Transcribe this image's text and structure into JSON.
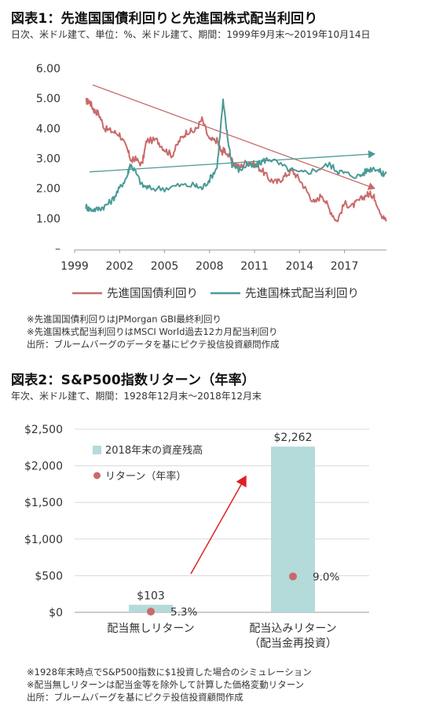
{
  "chart1": {
    "title": "図表1：先進国国債利回りと先進国株式配当利回り",
    "subtitle": "日次、米ドル建て、単位：%、米ドル建て、期間：1999年9月末〜2019年10月14日",
    "notes": [
      "※先進国国債利回りはJPMorgan GBI最終利回り",
      "※先進国株式配当利回りはMSCI World過去12カ月配当利回り",
      "出所：ブルームバーグのデータを基にピクテ投信投資顧問作成"
    ]
  },
  "chart2": {
    "title": "図表2：S&P500指数リターン（年率）",
    "subtitle": "年次、米ドル建て、期間：1928年12月末〜2018年12月末",
    "notes": [
      "※1928年末時点でS&P500指数に$1投資した場合のシミュレーション",
      "※配当無しリターンは配当金等を除外して計算した価格変動リターン",
      "出所：ブルームバーグを基にピクテ投信投資顧問作成"
    ]
  },
  "chart_data": [
    {
      "type": "line",
      "title": "図表1：先進国国債利回りと先進国株式配当利回り",
      "ylim": [
        0,
        6
      ],
      "y_ticks": [
        "–",
        "1.00",
        "2.00",
        "3.00",
        "4.00",
        "5.00",
        "6.00"
      ],
      "x_ticks": [
        "1999",
        "2002",
        "2005",
        "2008",
        "2011",
        "2014",
        "2017"
      ],
      "xlim": [
        1999.0,
        2019.8
      ],
      "grid": false,
      "legend_position": "bottom",
      "colors": {
        "bond": "#c96a6a",
        "div": "#4a9a96"
      },
      "series": [
        {
          "name": "先進国国債利回り",
          "color": "#c96a6a",
          "x": [
            1999.75,
            2000.0,
            2000.3,
            2000.6,
            2001.0,
            2001.5,
            2002.0,
            2002.5,
            2002.8,
            2003.0,
            2003.5,
            2003.8,
            2004.5,
            2005.0,
            2005.5,
            2006.0,
            2006.5,
            2007.0,
            2007.5,
            2008.0,
            2008.5,
            2008.8,
            2009.0,
            2009.5,
            2010.0,
            2010.5,
            2011.0,
            2011.5,
            2012.0,
            2012.5,
            2013.0,
            2013.5,
            2014.0,
            2014.5,
            2015.0,
            2015.5,
            2016.0,
            2016.5,
            2017.0,
            2017.5,
            2018.0,
            2018.5,
            2018.8,
            2019.0,
            2019.5,
            2019.79
          ],
          "y": [
            4.9,
            4.9,
            4.6,
            4.5,
            4.0,
            3.9,
            3.8,
            3.3,
            2.9,
            3.0,
            2.8,
            3.6,
            3.6,
            3.3,
            3.1,
            3.6,
            3.9,
            3.9,
            4.3,
            3.6,
            3.6,
            3.2,
            3.3,
            2.9,
            2.7,
            2.9,
            2.8,
            2.6,
            2.3,
            2.2,
            2.4,
            2.6,
            2.3,
            1.9,
            1.5,
            1.8,
            1.3,
            0.9,
            1.5,
            1.4,
            1.6,
            1.8,
            1.8,
            1.7,
            1.1,
            0.9
          ]
        },
        {
          "name": "先進国株式配当利回り",
          "color": "#4a9a96",
          "x": [
            1999.75,
            2000.0,
            2000.5,
            2001.0,
            2001.5,
            2002.0,
            2002.5,
            2002.7,
            2003.0,
            2003.5,
            2004.0,
            2005.0,
            2006.0,
            2007.0,
            2007.5,
            2008.0,
            2008.5,
            2008.9,
            2009.2,
            2009.5,
            2010.0,
            2010.5,
            2011.0,
            2011.5,
            2012.0,
            2013.0,
            2014.0,
            2015.0,
            2016.0,
            2016.5,
            2017.0,
            2018.0,
            2018.5,
            2019.0,
            2019.5,
            2019.79
          ],
          "y": [
            1.4,
            1.3,
            1.3,
            1.4,
            1.6,
            2.0,
            2.4,
            2.8,
            2.6,
            2.1,
            2.0,
            2.0,
            2.1,
            2.1,
            2.0,
            2.3,
            2.7,
            4.9,
            3.7,
            2.8,
            2.6,
            2.8,
            2.7,
            2.9,
            3.0,
            2.7,
            2.5,
            2.6,
            2.8,
            2.6,
            2.5,
            2.4,
            2.6,
            2.7,
            2.5,
            2.5
          ]
        }
      ],
      "trendlines": [
        {
          "series": "先進国国債利回り",
          "x": [
            2000.2,
            2019.0
          ],
          "y": [
            5.45,
            2.0
          ]
        },
        {
          "series": "先進国株式配当利回り",
          "x": [
            2000.0,
            2019.0
          ],
          "y": [
            2.55,
            3.15
          ]
        }
      ]
    },
    {
      "type": "bar",
      "title": "図表2：S&P500指数リターン（年率）",
      "categories": [
        "配当無しリターン",
        "配当込みリターン\n（配当金再投資）"
      ],
      "series": [
        {
          "name": "2018年末の資産残高",
          "color": "#b4dada",
          "values": [
            103,
            2262
          ],
          "labels": [
            "$103",
            "$2,262"
          ]
        },
        {
          "name": "リターン（年率）",
          "color": "#c96a6a",
          "values": [
            5.3,
            9.0
          ],
          "labels": [
            "5.3%",
            "9.0%"
          ]
        }
      ],
      "ylim": [
        0,
        2500
      ],
      "y_ticks": [
        "$0",
        "$500",
        "$1,000",
        "$1,500",
        "$2,000",
        "$2,500"
      ],
      "grid": true,
      "legend_position": "top-left"
    }
  ]
}
